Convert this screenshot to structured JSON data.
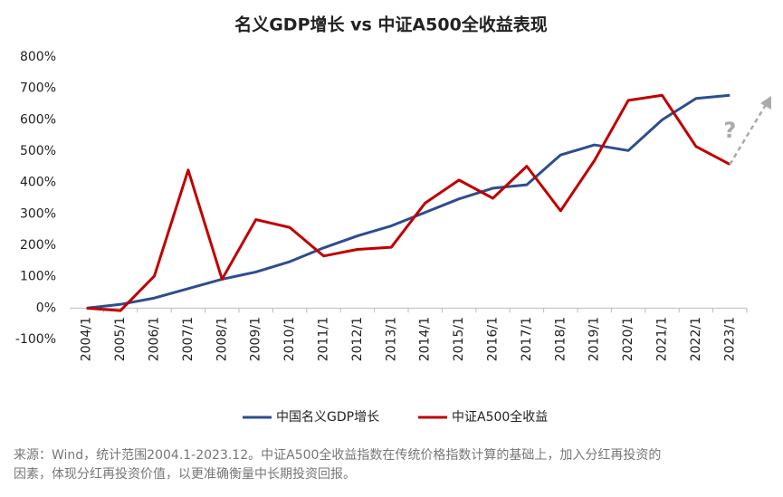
{
  "chart_data": {
    "type": "line",
    "title": "名义GDP增长 vs 中证A500全收益表现",
    "categories": [
      "2004/1",
      "2005/1",
      "2006/1",
      "2007/1",
      "2008/1",
      "2009/1",
      "2010/1",
      "2011/1",
      "2012/1",
      "2013/1",
      "2014/1",
      "2015/1",
      "2016/1",
      "2017/1",
      "2018/1",
      "2019/1",
      "2020/1",
      "2021/1",
      "2022/1",
      "2023/1"
    ],
    "series": [
      {
        "name": "中国名义GDP增长",
        "color": "#2e4d8f",
        "values": [
          0,
          12,
          32,
          62,
          92,
          115,
          148,
          192,
          230,
          262,
          305,
          348,
          382,
          393,
          488,
          520,
          502,
          600,
          668,
          678
        ]
      },
      {
        "name": "中证A500全收益",
        "color": "#c00000",
        "values": [
          0,
          -8,
          102,
          440,
          92,
          282,
          257,
          166,
          187,
          194,
          335,
          408,
          350,
          452,
          310,
          470,
          662,
          678,
          515,
          458
        ]
      }
    ],
    "ylim": [
      -100,
      800
    ],
    "yticks": [
      {
        "value": -100,
        "label": "-100%"
      },
      {
        "value": 0,
        "label": "0%"
      },
      {
        "value": 100,
        "label": "100%"
      },
      {
        "value": 200,
        "label": "200%"
      },
      {
        "value": 300,
        "label": "300%"
      },
      {
        "value": 400,
        "label": "400%"
      },
      {
        "value": 500,
        "label": "500%"
      },
      {
        "value": 600,
        "label": "600%"
      },
      {
        "value": 700,
        "label": "700%"
      },
      {
        "value": 800,
        "label": "800%"
      }
    ],
    "grid": false,
    "legend": "bottom",
    "annotation": "?",
    "source": [
      "来源：Wind，统计范围2004.1-2023.12。中证A500全收益指数在传统价格指数计算的基础上，加入分红再投资的",
      "因素，体现分红再投资价值，以更准确衡量中长期投资回报。"
    ]
  }
}
